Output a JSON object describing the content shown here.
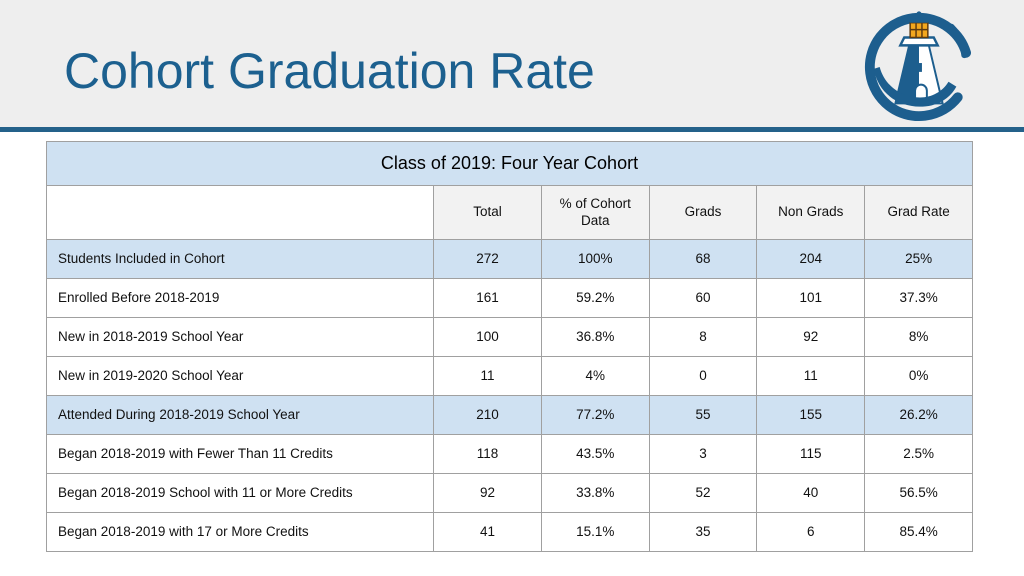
{
  "header": {
    "title": "Cohort Graduation Rate",
    "logo_icon": "lighthouse-logo"
  },
  "table": {
    "title": "Class of 2019: Four Year Cohort",
    "columns": [
      "",
      "Total",
      "% of Cohort Data",
      "Grads",
      "Non Grads",
      "Grad Rate"
    ],
    "rows": [
      {
        "label": "Students Included in Cohort",
        "values": [
          "272",
          "100%",
          "68",
          "204",
          "25%"
        ],
        "highlight": true
      },
      {
        "label": "Enrolled Before 2018-2019",
        "values": [
          "161",
          "59.2%",
          "60",
          "101",
          "37.3%"
        ],
        "highlight": false
      },
      {
        "label": "New in 2018-2019 School Year",
        "values": [
          "100",
          "36.8%",
          "8",
          "92",
          "8%"
        ],
        "highlight": false
      },
      {
        "label": "New in 2019-2020 School Year",
        "values": [
          "11",
          "4%",
          "0",
          "11",
          "0%"
        ],
        "highlight": false
      },
      {
        "label": "Attended During 2018-2019 School Year",
        "values": [
          "210",
          "77.2%",
          "55",
          "155",
          "26.2%"
        ],
        "highlight": true
      },
      {
        "label": "Began 2018-2019 with Fewer Than 11 Credits",
        "values": [
          "118",
          "43.5%",
          "3",
          "115",
          "2.5%"
        ],
        "highlight": false
      },
      {
        "label": "Began 2018-2019 School with 11 or More Credits",
        "values": [
          "92",
          "33.8%",
          "52",
          "40",
          "56.5%"
        ],
        "highlight": false
      },
      {
        "label": "Began 2018-2019 with 17 or More Credits",
        "values": [
          "41",
          "15.1%",
          "35",
          "6",
          "85.4%"
        ],
        "highlight": false
      }
    ]
  },
  "chart_data": {
    "type": "table",
    "title": "Class of 2019: Four Year Cohort",
    "columns": [
      "Total",
      "% of Cohort Data",
      "Grads",
      "Non Grads",
      "Grad Rate"
    ],
    "categories": [
      "Students Included in Cohort",
      "Enrolled Before 2018-2019",
      "New in 2018-2019 School Year",
      "New in 2019-2020 School Year",
      "Attended During 2018-2019 School Year",
      "Began 2018-2019 with Fewer Than 11 Credits",
      "Began 2018-2019 School with 11 or More Credits",
      "Began 2018-2019 with 17 or More Credits"
    ],
    "series": [
      {
        "name": "Total",
        "values": [
          272,
          161,
          100,
          11,
          210,
          118,
          92,
          41
        ]
      },
      {
        "name": "% of Cohort Data",
        "values": [
          "100%",
          "59.2%",
          "36.8%",
          "4%",
          "77.2%",
          "43.5%",
          "33.8%",
          "15.1%"
        ]
      },
      {
        "name": "Grads",
        "values": [
          68,
          60,
          8,
          0,
          55,
          3,
          52,
          35
        ]
      },
      {
        "name": "Non Grads",
        "values": [
          204,
          101,
          92,
          11,
          155,
          115,
          40,
          6
        ]
      },
      {
        "name": "Grad Rate",
        "values": [
          "25%",
          "37.3%",
          "8%",
          "0%",
          "26.2%",
          "2.5%",
          "56.5%",
          "85.4%"
        ]
      }
    ]
  },
  "colors": {
    "title_blue": "#1c608f",
    "divider_blue": "#24618a",
    "highlight_blue": "#cfe1f2",
    "header_cell_gray": "#f2f2f2",
    "band_gray": "#eeeeee",
    "border_gray": "#a0a0a0",
    "logo_blue": "#1d5e8e",
    "lantern_orange": "#f2a71e"
  }
}
